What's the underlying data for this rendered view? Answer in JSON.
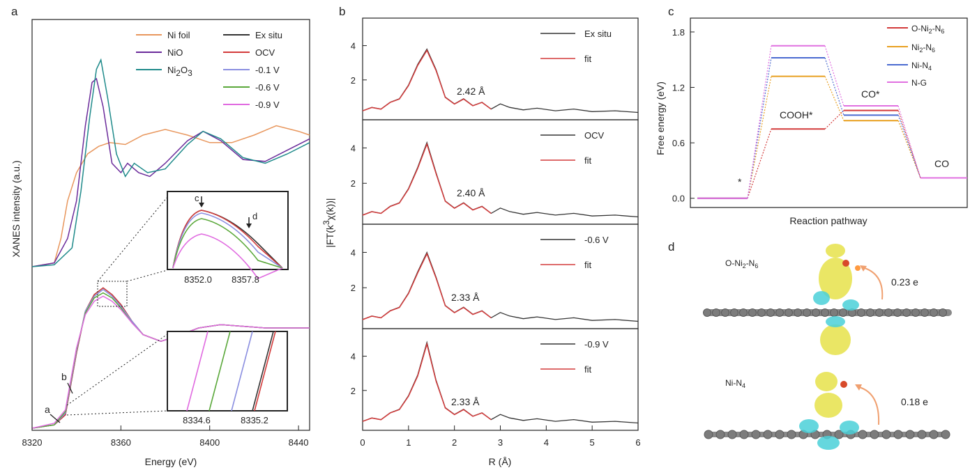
{
  "panel_letters": {
    "a": "a",
    "b": "b",
    "c": "c",
    "d": "d"
  },
  "colors": {
    "ni_foil": "#e8965c",
    "nio": "#6a2a9a",
    "ni2o3": "#1e8a8a",
    "ex_situ": "#333333",
    "ocv": "#d33a3a",
    "v01": "#8a8ee0",
    "v06": "#5aa83a",
    "v09": "#e06ae0",
    "fit": "#d33a3a",
    "o_ni2n6": "#d33a3a",
    "ni2n6": "#e8a020",
    "nin4": "#4a6ad0",
    "ng": "#e070e0"
  },
  "chart_data": [
    {
      "type": "line",
      "panel": "a",
      "xlabel": "Energy (eV)",
      "ylabel": "XANES intensity (a.u.)",
      "xlim": [
        8320,
        8445
      ],
      "xticks": [
        "8320",
        "8360",
        "8400",
        "8440"
      ],
      "legend": [
        "Ni foil",
        "NiO",
        "Ni2O3",
        "Ex situ",
        "OCV",
        "-0.1 V",
        "-0.6 V",
        "-0.9 V"
      ],
      "legend_text": {
        "nifoil": "Ni foil",
        "nio": "NiO",
        "ni2o3_main": "Ni",
        "ni2o3_sub2": "2",
        "ni2o3_O": "O",
        "ni2o3_sub3": "3",
        "exsitu": "Ex situ",
        "ocv": "OCV",
        "v01": "-0.1 V",
        "v06": "-0.6 V",
        "v09": "-0.9 V"
      },
      "series": [
        {
          "name": "Ni foil",
          "offset": 1,
          "x": [
            8320,
            8330,
            8333,
            8336,
            8340,
            8345,
            8350,
            8355,
            8362,
            8370,
            8380,
            8390,
            8400,
            8410,
            8420,
            8430,
            8440,
            8445
          ],
          "y": [
            0,
            0.02,
            0.15,
            0.35,
            0.5,
            0.6,
            0.64,
            0.66,
            0.65,
            0.7,
            0.73,
            0.7,
            0.66,
            0.66,
            0.7,
            0.75,
            0.72,
            0.7
          ]
        },
        {
          "name": "NiO",
          "offset": 1,
          "x": [
            8320,
            8330,
            8336,
            8340,
            8344,
            8347,
            8349,
            8352,
            8356,
            8360,
            8363,
            8368,
            8373,
            8380,
            8390,
            8397,
            8405,
            8415,
            8425,
            8435,
            8445
          ],
          "y": [
            0,
            0.02,
            0.15,
            0.35,
            0.75,
            0.98,
            1.0,
            0.85,
            0.55,
            0.5,
            0.55,
            0.5,
            0.48,
            0.55,
            0.67,
            0.72,
            0.67,
            0.57,
            0.56,
            0.62,
            0.68
          ]
        },
        {
          "name": "Ni2O3",
          "offset": 1,
          "x": [
            8320,
            8330,
            8338,
            8342,
            8346,
            8349,
            8351,
            8354,
            8358,
            8362,
            8366,
            8372,
            8380,
            8390,
            8397,
            8405,
            8415,
            8425,
            8435,
            8445
          ],
          "y": [
            0,
            0.01,
            0.1,
            0.4,
            0.8,
            1.05,
            1.1,
            0.9,
            0.6,
            0.48,
            0.55,
            0.5,
            0.52,
            0.65,
            0.72,
            0.68,
            0.58,
            0.55,
            0.6,
            0.66
          ]
        },
        {
          "name": "Ex situ",
          "offset": 0,
          "x": [
            8320,
            8330,
            8335,
            8340,
            8344,
            8348,
            8352,
            8356,
            8360,
            8365,
            8370,
            8378,
            8385,
            8395,
            8405,
            8415,
            8425,
            8435,
            8445
          ],
          "y": [
            0,
            0.02,
            0.08,
            0.45,
            0.7,
            0.8,
            0.84,
            0.8,
            0.74,
            0.64,
            0.56,
            0.52,
            0.55,
            0.6,
            0.62,
            0.61,
            0.6,
            0.6,
            0.6
          ]
        },
        {
          "name": "OCV",
          "offset": 0,
          "x": [
            8320,
            8330,
            8335,
            8340,
            8344,
            8348,
            8352,
            8356,
            8360,
            8365,
            8370,
            8378,
            8385,
            8395,
            8405,
            8415,
            8425,
            8435,
            8445
          ],
          "y": [
            0,
            0.02,
            0.08,
            0.45,
            0.7,
            0.8,
            0.84,
            0.8,
            0.74,
            0.64,
            0.56,
            0.52,
            0.55,
            0.6,
            0.62,
            0.61,
            0.6,
            0.6,
            0.6
          ]
        },
        {
          "name": "-0.1 V",
          "offset": 0,
          "x": [
            8320,
            8330,
            8335,
            8340,
            8344,
            8348,
            8352,
            8356,
            8360,
            8365,
            8370,
            8378,
            8385,
            8395,
            8405,
            8415,
            8425,
            8435,
            8445
          ],
          "y": [
            0,
            0.02,
            0.09,
            0.46,
            0.7,
            0.79,
            0.83,
            0.79,
            0.73,
            0.64,
            0.56,
            0.52,
            0.55,
            0.6,
            0.62,
            0.61,
            0.6,
            0.6,
            0.6
          ]
        },
        {
          "name": "-0.6 V",
          "offset": 0,
          "x": [
            8320,
            8330,
            8335,
            8340,
            8344,
            8348,
            8352,
            8356,
            8360,
            8365,
            8370,
            8378,
            8385,
            8395,
            8405,
            8415,
            8425,
            8435,
            8445
          ],
          "y": [
            0,
            0.02,
            0.1,
            0.47,
            0.69,
            0.78,
            0.81,
            0.78,
            0.72,
            0.63,
            0.56,
            0.52,
            0.55,
            0.6,
            0.62,
            0.61,
            0.6,
            0.6,
            0.6
          ]
        },
        {
          "name": "-0.9 V",
          "offset": 0,
          "x": [
            8320,
            8330,
            8335,
            8340,
            8344,
            8348,
            8352,
            8356,
            8360,
            8365,
            8370,
            8378,
            8385,
            8395,
            8405,
            8415,
            8425,
            8435,
            8445
          ],
          "y": [
            0,
            0.03,
            0.11,
            0.48,
            0.68,
            0.76,
            0.79,
            0.76,
            0.71,
            0.63,
            0.56,
            0.52,
            0.55,
            0.6,
            0.62,
            0.61,
            0.6,
            0.6,
            0.6
          ]
        }
      ],
      "annotations": [
        "a",
        "b"
      ],
      "inset1": {
        "ticks": [
          "8352.0",
          "8357.8"
        ],
        "labels": [
          "c",
          "d"
        ]
      },
      "inset2": {
        "ticks": [
          "8334.6",
          "8335.2"
        ]
      }
    },
    {
      "type": "line",
      "panel": "b",
      "xlabel": "R (Å)",
      "ylabel_main": "|FT(k",
      "ylabel_sup": "3",
      "ylabel_rest": "χ(k))|",
      "xlim": [
        0,
        6
      ],
      "xticks": [
        "0",
        "1",
        "2",
        "3",
        "4",
        "5",
        "6"
      ],
      "yticks": [
        "2",
        "4"
      ],
      "subplots": [
        {
          "legend": [
            "Ex situ",
            "fit"
          ],
          "annotation": "2.42 Å",
          "peak": 3.8
        },
        {
          "legend": [
            "OCV",
            "fit"
          ],
          "annotation": "2.40 Å",
          "peak": 4.3
        },
        {
          "legend": [
            "-0.6 V",
            "fit"
          ],
          "annotation": "2.33 Å",
          "peak": 4.0
        },
        {
          "legend": [
            "-0.9 V",
            "fit"
          ],
          "annotation": "2.33 Å",
          "peak": 4.8
        }
      ]
    },
    {
      "type": "line",
      "panel": "c",
      "xlabel": "Reaction pathway",
      "ylabel": "Free energy (eV)",
      "ylim": [
        -0.1,
        1.95
      ],
      "yticks": [
        "0.0",
        "0.6",
        "1.2",
        "1.8"
      ],
      "steps": [
        "*",
        "COOH*",
        "CO*",
        "CO"
      ],
      "step_labels": {
        "star": "*",
        "cooh": "COOH*",
        "costar": "CO*",
        "co": "CO"
      },
      "legend_text": {
        "o_ni2n6": "O-Ni",
        "o_ni2n6_s1": "2",
        "o_ni2n6_rest": "-N",
        "o_ni2n6_s2": "6",
        "ni2n6": "Ni",
        "ni2n6_s1": "2",
        "ni2n6_rest": "-N",
        "ni2n6_s2": "6",
        "nin4": "Ni-N",
        "nin4_s": "4",
        "ng": "N-G"
      },
      "series": [
        {
          "name": "O-Ni2-N6",
          "values": [
            0.0,
            0.75,
            0.95,
            0.22
          ]
        },
        {
          "name": "Ni2-N6",
          "values": [
            0.0,
            1.32,
            0.84,
            0.22
          ]
        },
        {
          "name": "Ni-N4",
          "values": [
            0.0,
            1.52,
            0.9,
            0.22
          ]
        },
        {
          "name": "N-G",
          "values": [
            0.0,
            1.65,
            1.0,
            0.22
          ]
        }
      ]
    }
  ],
  "panel_d": {
    "label1": "O-Ni",
    "label1_s1": "2",
    "label1_rest": "-N",
    "label1_s2": "6",
    "charge1": "0.23 e",
    "label2": "Ni-N",
    "label2_s": "4",
    "charge2": "0.18 e"
  }
}
